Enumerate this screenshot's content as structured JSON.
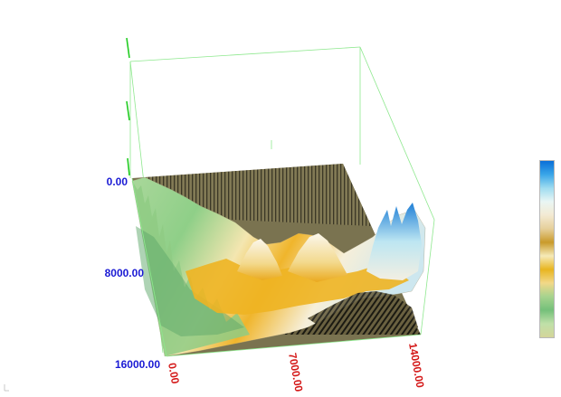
{
  "chart_data": {
    "type": "surface3d",
    "title": "",
    "xlabel": "",
    "ylabel": "",
    "x_ticks": [
      "0.00",
      "7000.00",
      "14000.00"
    ],
    "y_ticks": [
      "0.00",
      "8000.00",
      "16000.00"
    ],
    "xlim": [
      0,
      14000
    ],
    "ylim": [
      0,
      16000
    ],
    "grid": false,
    "box_color": "#8ee88e",
    "z_axis_color": "#22cc22",
    "floor_color": "#7c7552",
    "legend": "right",
    "colormap": [
      "#0a6fd8",
      "#3aa6e8",
      "#9fdcf0",
      "#e9f6f4",
      "#f3ead2",
      "#e6cf9a",
      "#c99a2a",
      "#f6eab8",
      "#e8b520",
      "#f2d889",
      "#a7d38e",
      "#74c07a",
      "#bfe0a9",
      "#d4d59a"
    ]
  }
}
